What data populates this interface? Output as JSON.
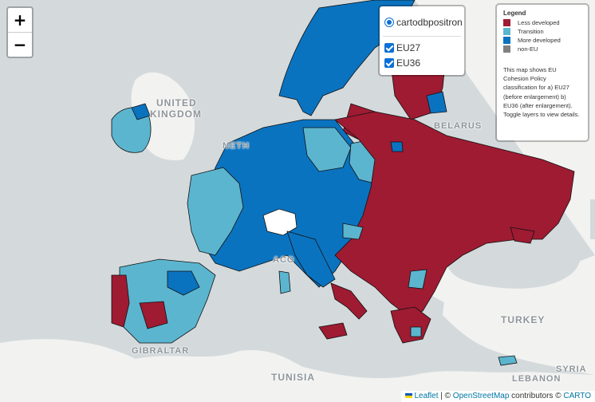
{
  "map": {
    "labels": {
      "united": "UNITED",
      "kingdom": "KINGDOM",
      "belarus": "BELARUS",
      "turkey": "TURKEY",
      "syria": "SYRIA",
      "lebanon": "LEBANON",
      "tunisia": "TUNISIA",
      "gibraltar": "GIBRALTAR",
      "neth": "NETH",
      "monaco": "ACO"
    }
  },
  "zoom": {
    "in": "+",
    "out": "−"
  },
  "layers": {
    "base_layer": "cartodbpositron",
    "overlays": [
      {
        "label": "EU27",
        "checked": true
      },
      {
        "label": "EU36",
        "checked": true
      }
    ]
  },
  "legend": {
    "title": "Legend",
    "items": [
      {
        "label": "Less developed",
        "color": "#9e1b32"
      },
      {
        "label": "Transition",
        "color": "#5bb5cf"
      },
      {
        "label": "More developed",
        "color": "#0a73c0"
      },
      {
        "label": "non-EU",
        "color": "#808080"
      }
    ],
    "note": "This map shows EU Cohesion Policy classification for a) EU27 (before enlargement) b) EU36 (after enlargement). Toggle layers to view details."
  },
  "attribution": {
    "leaflet": "Leaflet",
    "sep1": " | © ",
    "osm": "OpenStreetMap",
    "mid": " contributors © ",
    "carto": "CARTO"
  }
}
